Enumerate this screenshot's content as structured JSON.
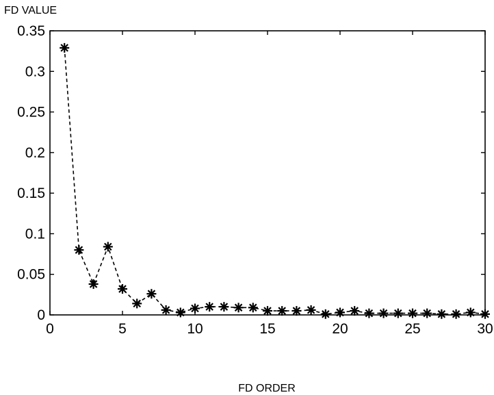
{
  "chart_data": {
    "type": "line",
    "title": "",
    "xlabel": "FD ORDER",
    "ylabel": "FD VALUE",
    "xlim": [
      0,
      30
    ],
    "ylim": [
      0,
      0.35
    ],
    "xticks": [
      0,
      5,
      10,
      15,
      20,
      25,
      30
    ],
    "yticks": [
      0,
      0.05,
      0.1,
      0.15,
      0.2,
      0.25,
      0.3,
      0.35
    ],
    "xtick_labels": [
      "0",
      "5",
      "10",
      "15",
      "20",
      "25",
      "30"
    ],
    "ytick_labels": [
      "0",
      "0.05",
      "0.1",
      "0.15",
      "0.2",
      "0.25",
      "0.3",
      "0.35"
    ],
    "grid": false,
    "line_style": "dashed",
    "marker": "asterisk",
    "series": [
      {
        "x": [
          1,
          2,
          3,
          4,
          5,
          6,
          7,
          8,
          9,
          10,
          11,
          12,
          13,
          14,
          15,
          16,
          17,
          18,
          19,
          20,
          21,
          22,
          23,
          24,
          25,
          26,
          27,
          28,
          29,
          30
        ],
        "values": [
          0.329,
          0.08,
          0.038,
          0.084,
          0.032,
          0.014,
          0.026,
          0.006,
          0.003,
          0.008,
          0.01,
          0.01,
          0.009,
          0.009,
          0.005,
          0.005,
          0.005,
          0.006,
          0.001,
          0.003,
          0.005,
          0.002,
          0.002,
          0.002,
          0.002,
          0.002,
          0.001,
          0.001,
          0.003,
          0.001
        ]
      }
    ]
  }
}
